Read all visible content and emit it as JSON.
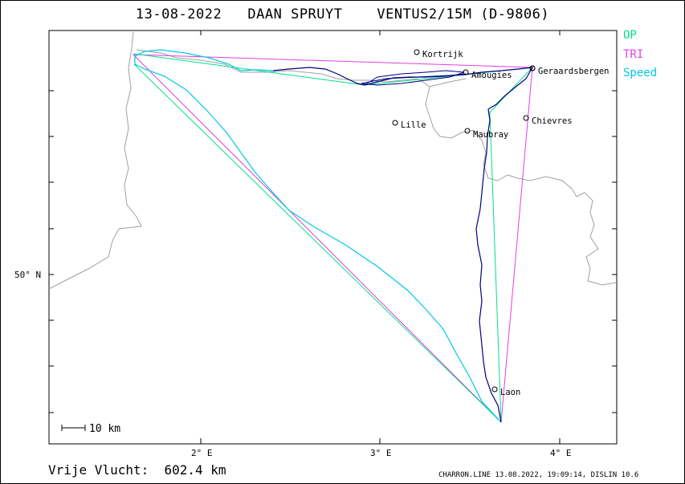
{
  "header": {
    "title": "13-08-2022   DAAN SPRUYT    VENTUS2/15M (D-9806)"
  },
  "legend": [
    {
      "label": "OP",
      "color": "#00e08a"
    },
    {
      "label": "TRI",
      "color": "#e040e0"
    },
    {
      "label": "Speed",
      "color": "#00c8e8"
    }
  ],
  "axes": {
    "x_ticks": [
      {
        "lon": 2,
        "label": "2° E"
      },
      {
        "lon": 3,
        "label": "3° E"
      },
      {
        "lon": 4,
        "label": "4° E"
      }
    ],
    "y_ticks": [
      {
        "lat": 50,
        "label": "50° N"
      }
    ]
  },
  "scale_bar": {
    "label": "10 km"
  },
  "places": [
    {
      "name": "Kortrijk",
      "lon": 3.27,
      "lat": 50.83
    },
    {
      "name": "Lille",
      "lon": 3.07,
      "lat": 50.63
    },
    {
      "name": "Amougies",
      "lon": 3.5,
      "lat": 50.74
    },
    {
      "name": "Geraardsbergen",
      "lon": 3.88,
      "lat": 50.77
    },
    {
      "name": "Chievres",
      "lon": 3.81,
      "lat": 50.59
    },
    {
      "name": "Maubray",
      "lon": 3.49,
      "lat": 50.54
    },
    {
      "name": "Laon",
      "lon": 3.62,
      "lat": 49.56
    }
  ],
  "footer": {
    "distance": "Vrije Vlucht:  602.4 km",
    "credit": "CHARRON.LINE 13.08.2022, 19:09:14, DISLIN 10.6"
  },
  "colors": {
    "track": "#000080",
    "border": "#a0a0a0",
    "op": "#00e08a",
    "tri": "#e040e0",
    "speed": "#00c8e8"
  }
}
